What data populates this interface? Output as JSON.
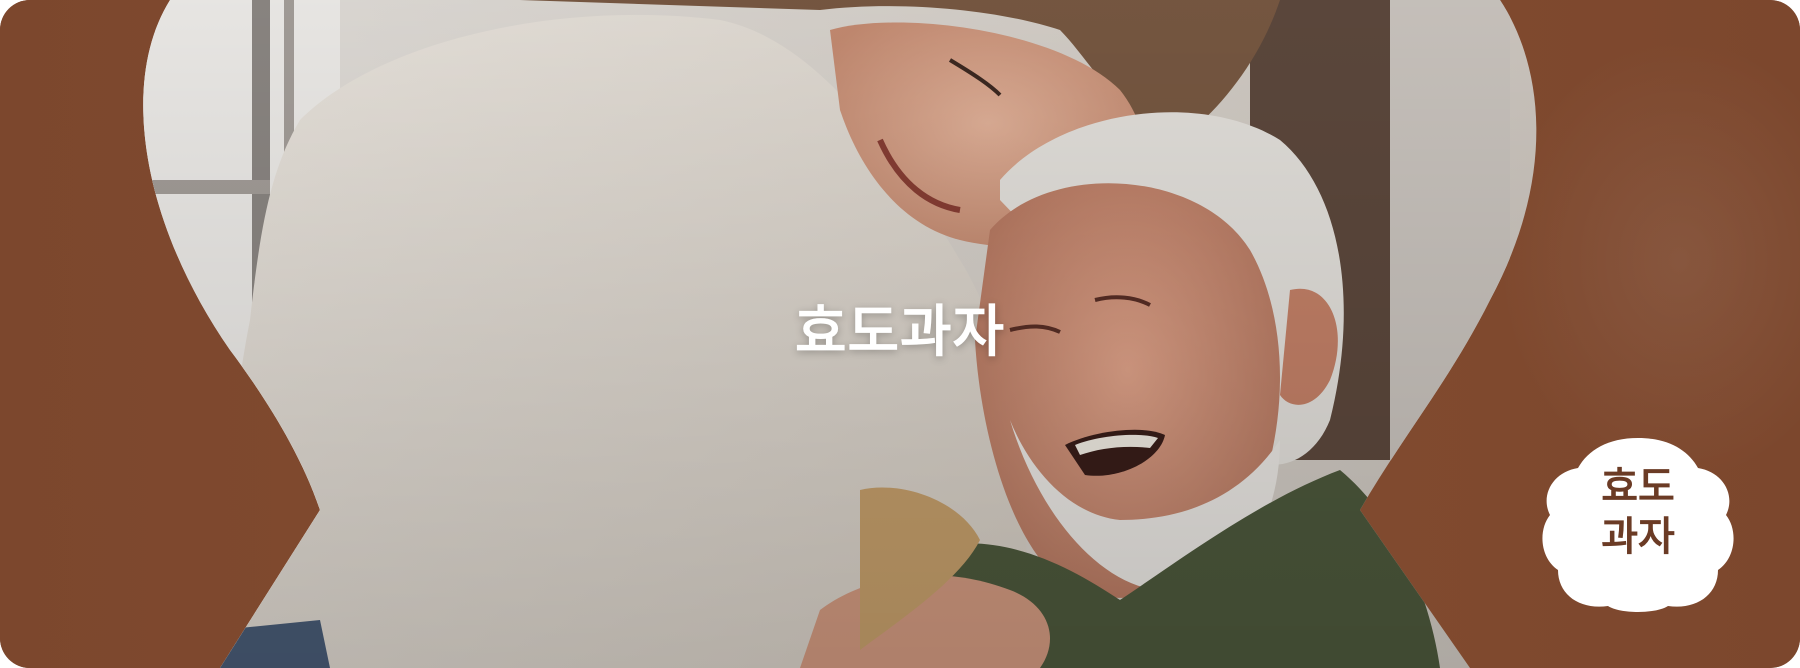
{
  "banner": {
    "title": "효도과자",
    "photo_description_icon": "family-photo",
    "logo": {
      "line1": "효도",
      "line2": "과자"
    }
  },
  "colors": {
    "brand_brown": "#7c472d",
    "logo_text": "#6b3b25",
    "title_text": "#ffffff"
  }
}
